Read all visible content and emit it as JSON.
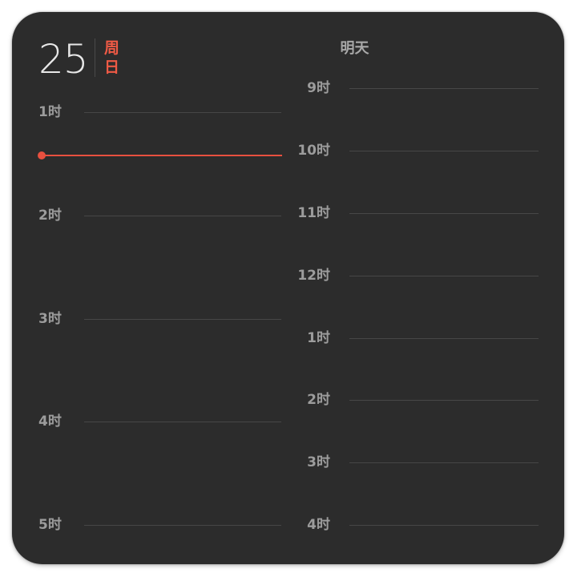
{
  "date": {
    "day": "25",
    "weekday": "周日"
  },
  "tomorrow_label": "明天",
  "today_hours": [
    "1时",
    "2时",
    "3时",
    "4时",
    "5时"
  ],
  "tomorrow_hours": [
    "9时",
    "10时",
    "11时",
    "12时",
    "1时",
    "2时",
    "3时",
    "4时"
  ],
  "colors": {
    "background": "#2c2c2c",
    "accent": "#e8503f",
    "label": "#9c9c9c",
    "gridline": "#474747"
  }
}
